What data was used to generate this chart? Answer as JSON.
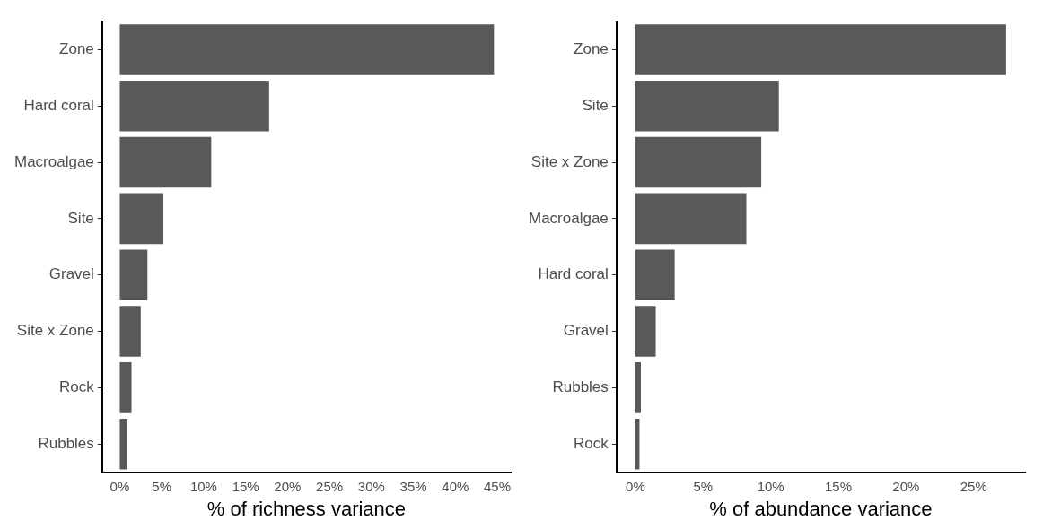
{
  "chart_data": [
    {
      "type": "bar",
      "orientation": "horizontal",
      "xlabel": "% of richness variance",
      "categories": [
        "Zone",
        "Hard coral",
        "Macroalgae",
        "Site",
        "Gravel",
        "Site x Zone",
        "Rock",
        "Rubbles"
      ],
      "values": [
        44.6,
        17.8,
        10.9,
        5.2,
        3.3,
        2.5,
        1.4,
        0.9
      ],
      "color": "#595959",
      "xlim": [
        -2.1,
        46.6
      ],
      "xticks": [
        {
          "value": 0,
          "label": "0%"
        },
        {
          "value": 5,
          "label": "5%"
        },
        {
          "value": 10,
          "label": "10%"
        },
        {
          "value": 15,
          "label": "15%"
        },
        {
          "value": 20,
          "label": "20%"
        },
        {
          "value": 25,
          "label": "25%"
        },
        {
          "value": 30,
          "label": "30%"
        },
        {
          "value": 35,
          "label": "35%"
        },
        {
          "value": 40,
          "label": "40%"
        },
        {
          "value": 45,
          "label": "45%"
        }
      ],
      "grid": false,
      "legend": false
    },
    {
      "type": "bar",
      "orientation": "horizontal",
      "xlabel": "% of abundance variance",
      "categories": [
        "Zone",
        "Site",
        "Site x Zone",
        "Macroalgae",
        "Hard coral",
        "Gravel",
        "Rubbles",
        "Rock"
      ],
      "values": [
        27.4,
        10.6,
        9.3,
        8.2,
        2.9,
        1.5,
        0.4,
        0.3
      ],
      "color": "#595959",
      "xlim": [
        -1.4,
        28.8
      ],
      "xticks": [
        {
          "value": 0,
          "label": "0%"
        },
        {
          "value": 5,
          "label": "5%"
        },
        {
          "value": 10,
          "label": "10%"
        },
        {
          "value": 15,
          "label": "15%"
        },
        {
          "value": 20,
          "label": "20%"
        },
        {
          "value": 25,
          "label": "25%"
        }
      ],
      "grid": false,
      "legend": false
    }
  ]
}
